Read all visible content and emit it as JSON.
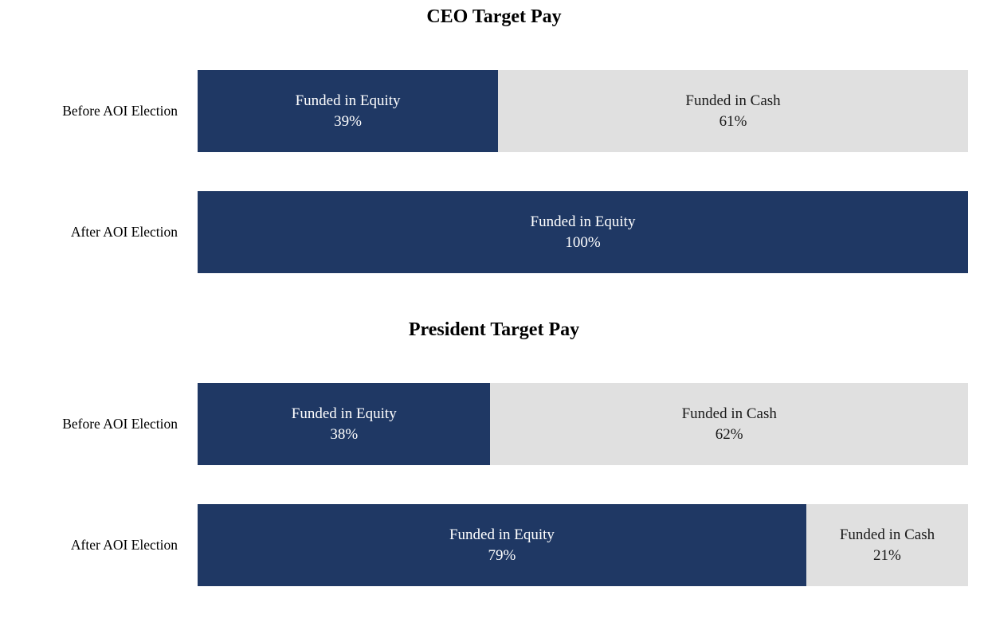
{
  "colors": {
    "equity_fill": "#1F3864",
    "cash_fill": "#E0E0E0",
    "equity_text": "#FFFFFF",
    "cash_text": "#1A1A1A",
    "title_text": "#000000"
  },
  "chart_data": [
    {
      "type": "bar",
      "title": "CEO Target Pay",
      "orientation": "horizontal",
      "stacked": true,
      "x_range": [
        0,
        100
      ],
      "grid": false,
      "legend": "none",
      "categories": [
        "Before AOI Election",
        "After AOI Election"
      ],
      "series": [
        {
          "name": "Funded in Equity",
          "values": [
            39,
            100
          ]
        },
        {
          "name": "Funded in Cash",
          "values": [
            61,
            0
          ]
        }
      ]
    },
    {
      "type": "bar",
      "title": "President Target Pay",
      "orientation": "horizontal",
      "stacked": true,
      "x_range": [
        0,
        100
      ],
      "grid": false,
      "legend": "none",
      "categories": [
        "Before AOI Election",
        "After AOI Election"
      ],
      "series": [
        {
          "name": "Funded in Equity",
          "values": [
            38,
            79
          ]
        },
        {
          "name": "Funded in Cash",
          "values": [
            62,
            21
          ]
        }
      ]
    }
  ]
}
